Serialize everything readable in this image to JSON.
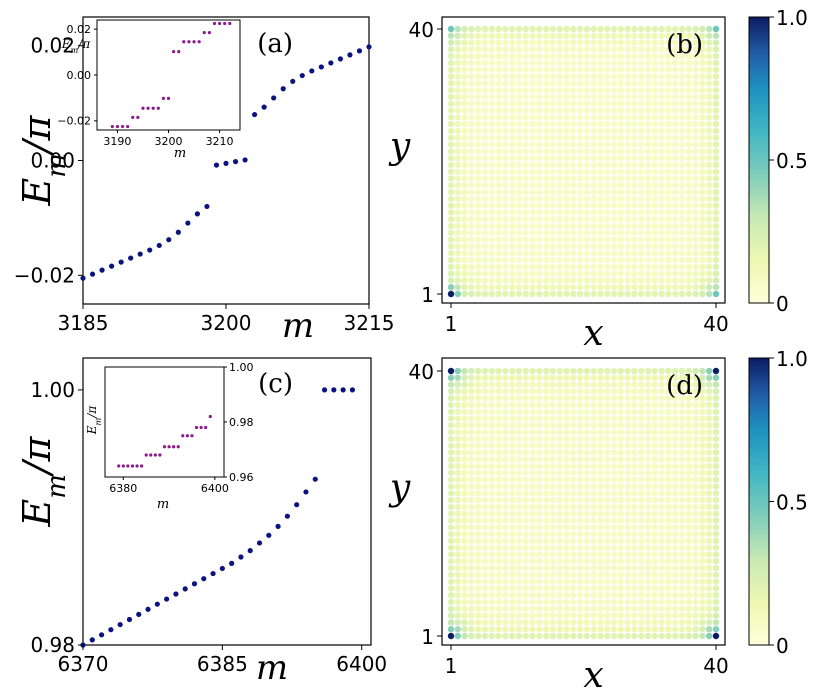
{
  "chart_data": [
    {
      "id": "a",
      "panel_label": "(a)",
      "type": "scatter",
      "xlabel": "m",
      "ylabel": "E_m/π",
      "xlim": [
        3185,
        3215
      ],
      "ylim": [
        -0.025,
        0.025
      ],
      "xticks": [
        3185,
        3200,
        3215
      ],
      "xtick_labels": [
        "3185",
        "3200",
        "3215"
      ],
      "yticks": [
        -0.02,
        0.0,
        0.02
      ],
      "ytick_labels": [
        "−0.02",
        "0.00",
        "0.02"
      ],
      "point_color": "#0a1380",
      "x": [
        3185,
        3186,
        3187,
        3188,
        3189,
        3190,
        3191,
        3192,
        3193,
        3194,
        3195,
        3196,
        3197,
        3198,
        3199,
        3200,
        3201,
        3202,
        3203,
        3204,
        3205,
        3206,
        3207,
        3208,
        3209,
        3210,
        3211,
        3212,
        3213,
        3214,
        3215
      ],
      "y": [
        -0.0205,
        -0.0198,
        -0.0191,
        -0.0184,
        -0.0177,
        -0.017,
        -0.0163,
        -0.0156,
        -0.0148,
        -0.0138,
        -0.0125,
        -0.0109,
        -0.0093,
        -0.008,
        -0.0008,
        -0.0005,
        -0.0002,
        0.0001,
        0.008,
        0.0093,
        0.0109,
        0.0125,
        0.0138,
        0.0148,
        0.0156,
        0.0163,
        0.017,
        0.0177,
        0.0184,
        0.0191,
        0.0198
      ],
      "inset": {
        "type": "scatter",
        "xlabel": "m",
        "ylabel": "E_m/π",
        "xlim": [
          3186,
          3214
        ],
        "ylim": [
          -0.024,
          0.024
        ],
        "xticks": [
          3190,
          3200,
          3210
        ],
        "xtick_labels": [
          "3190",
          "3200",
          "3210"
        ],
        "yticks": [
          -0.02,
          0.0,
          0.02
        ],
        "ytick_labels": [
          "−0.02",
          "0.00",
          "0.02"
        ],
        "point_color": "#8b1a8b",
        "x": [
          3189,
          3190,
          3191,
          3192,
          3193,
          3194,
          3195,
          3196,
          3197,
          3198,
          3199,
          3200,
          3201,
          3202,
          3203,
          3204,
          3205,
          3206,
          3207,
          3208,
          3209,
          3210,
          3211,
          3212
        ],
        "y": [
          -0.0225,
          -0.0225,
          -0.0225,
          -0.0225,
          -0.0185,
          -0.0185,
          -0.0145,
          -0.0145,
          -0.0145,
          -0.0145,
          -0.0102,
          -0.0102,
          0.0102,
          0.0102,
          0.0145,
          0.0145,
          0.0145,
          0.0145,
          0.0185,
          0.0185,
          0.0225,
          0.0225,
          0.0225,
          0.0225
        ]
      }
    },
    {
      "id": "b",
      "panel_label": "(b)",
      "type": "heatmap",
      "xlabel": "x",
      "ylabel": "y",
      "n": 40,
      "xticks": [
        "1",
        "40"
      ],
      "yticks": [
        "1",
        "40"
      ],
      "colorbar_ticks": [
        "0",
        "0.5",
        "1.0"
      ],
      "vmin": 0,
      "vmax": 1,
      "corner_hot": [
        {
          "corner": "bottom-left",
          "x": 1,
          "y": 1,
          "value": 1.0
        }
      ],
      "corner_spread": 0.3,
      "background_level": 0.07
    },
    {
      "id": "c",
      "panel_label": "(c)",
      "type": "scatter",
      "xlabel": "m",
      "ylabel": "E_m/π",
      "xlim": [
        6370,
        6401
      ],
      "ylim": [
        0.98,
        1.0025
      ],
      "xticks": [
        6370,
        6385,
        6400
      ],
      "xtick_labels": [
        "6370",
        "6385",
        "6400"
      ],
      "yticks": [
        0.98,
        1.0
      ],
      "ytick_labels": [
        "0.98",
        "1.00"
      ],
      "point_color": "#0a1380",
      "x": [
        6370,
        6371,
        6372,
        6373,
        6374,
        6375,
        6376,
        6377,
        6378,
        6379,
        6380,
        6381,
        6382,
        6383,
        6384,
        6385,
        6386,
        6387,
        6388,
        6389,
        6390,
        6391,
        6392,
        6393,
        6394,
        6395,
        6396,
        6397,
        6398,
        6399
      ],
      "y": [
        0.98,
        0.9804,
        0.9808,
        0.9812,
        0.9816,
        0.982,
        0.9824,
        0.9828,
        0.9832,
        0.9836,
        0.984,
        0.9844,
        0.9848,
        0.9852,
        0.9856,
        0.986,
        0.9864,
        0.9869,
        0.9874,
        0.988,
        0.9886,
        0.9893,
        0.9901,
        0.991,
        0.992,
        0.993,
        1.0,
        1.0,
        1.0,
        1.0
      ],
      "inset": {
        "type": "scatter",
        "xlabel": "m",
        "ylabel": "E_m/π",
        "xlim": [
          6376,
          6402
        ],
        "ylim": [
          0.96,
          1.0
        ],
        "xticks": [
          6380,
          6400
        ],
        "xtick_labels": [
          "6380",
          "6400"
        ],
        "yticks": [
          0.96,
          0.98,
          1.0
        ],
        "ytick_labels": [
          "0.96",
          "0.98",
          "1.00"
        ],
        "point_color": "#8b1a8b",
        "x": [
          6379,
          6380,
          6381,
          6382,
          6383,
          6384,
          6385,
          6386,
          6387,
          6388,
          6389,
          6390,
          6391,
          6392,
          6393,
          6394,
          6395,
          6396,
          6397,
          6398,
          6399
        ],
        "y": [
          0.964,
          0.964,
          0.964,
          0.964,
          0.964,
          0.964,
          0.968,
          0.968,
          0.968,
          0.968,
          0.971,
          0.971,
          0.971,
          0.971,
          0.975,
          0.975,
          0.975,
          0.978,
          0.978,
          0.978,
          0.982
        ]
      }
    },
    {
      "id": "d",
      "panel_label": "(d)",
      "type": "heatmap",
      "xlabel": "x",
      "ylabel": "y",
      "n": 40,
      "xticks": [
        "1",
        "40"
      ],
      "yticks": [
        "1",
        "40"
      ],
      "colorbar_ticks": [
        "0",
        "0.5",
        "1.0"
      ],
      "vmin": 0,
      "vmax": 1,
      "corner_hot": [
        {
          "corner": "bottom-left",
          "x": 1,
          "y": 1,
          "value": 1.0
        },
        {
          "corner": "bottom-right",
          "x": 40,
          "y": 1,
          "value": 1.0
        },
        {
          "corner": "top-left",
          "x": 1,
          "y": 40,
          "value": 1.0
        },
        {
          "corner": "top-right",
          "x": 40,
          "y": 40,
          "value": 1.0
        }
      ],
      "corner_spread": 0.5,
      "background_level": 0.08
    }
  ]
}
